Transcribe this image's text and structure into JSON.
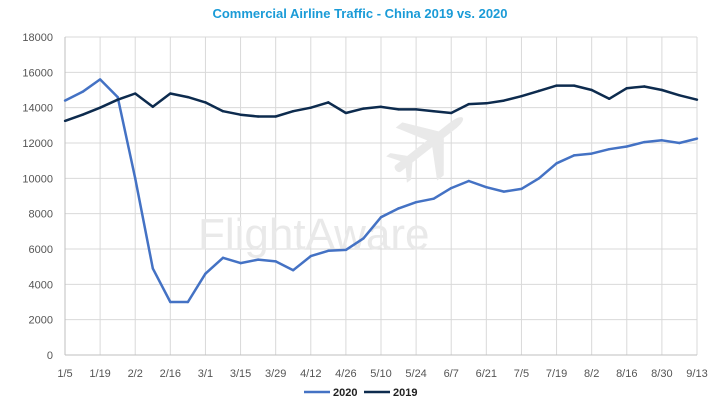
{
  "chart_data": {
    "type": "line",
    "title": "Commercial Airline Traffic - China 2019 vs. 2020",
    "xlabel": "",
    "ylabel": "",
    "ylim": [
      0,
      18000
    ],
    "yticks": [
      0,
      2000,
      4000,
      6000,
      8000,
      10000,
      12000,
      14000,
      16000,
      18000
    ],
    "grid": true,
    "legend_position": "bottom-center",
    "watermark": "FlightAware",
    "x_tick_labels": [
      "1/5",
      "1/19",
      "2/2",
      "2/16",
      "3/1",
      "3/15",
      "3/29",
      "4/12",
      "4/26",
      "5/10",
      "5/24",
      "6/7",
      "6/21",
      "7/5",
      "7/19",
      "8/2",
      "8/16",
      "8/30",
      "9/13"
    ],
    "n_points": 37,
    "series": [
      {
        "name": "2020",
        "color": "#4472c4",
        "values": [
          14400,
          14900,
          15600,
          14600,
          10000,
          4900,
          3000,
          3000,
          4600,
          5500,
          5200,
          5400,
          5300,
          4800,
          5600,
          5900,
          5950,
          6600,
          7800,
          8300,
          8650,
          8850,
          9450,
          9850,
          9500,
          9250,
          9400,
          10000,
          10850,
          11300,
          11400,
          11650,
          11800,
          12050,
          12150,
          12000,
          12250
        ]
      },
      {
        "name": "2019",
        "color": "#0d2b4e",
        "values": [
          13250,
          13600,
          14000,
          14450,
          14800,
          14050,
          14800,
          14600,
          14300,
          13800,
          13600,
          13500,
          13500,
          13800,
          14000,
          14300,
          13700,
          13950,
          14050,
          13900,
          13900,
          13800,
          13700,
          14200,
          14250,
          14400,
          14650,
          14950,
          15250,
          15250,
          15000,
          14500,
          15100,
          15200,
          15000,
          14700,
          14450
        ]
      }
    ]
  }
}
